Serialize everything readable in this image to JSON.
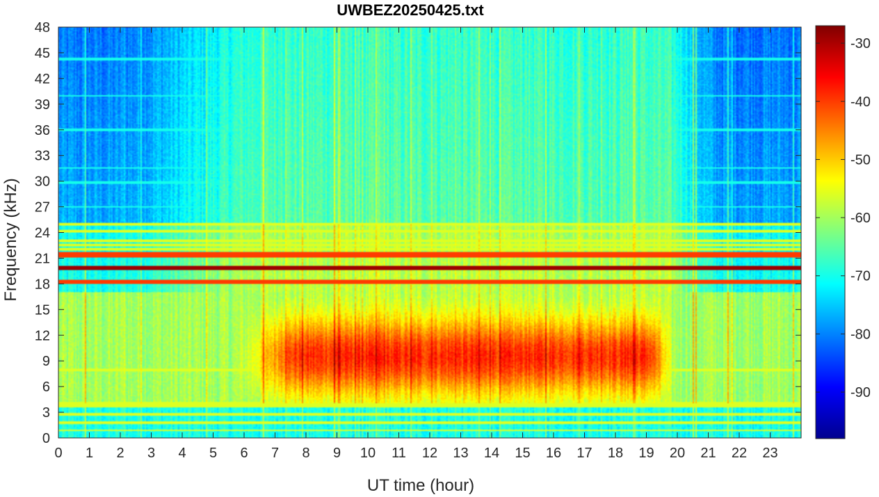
{
  "chart_data": {
    "type": "heatmap",
    "title": "UWBEZ20250425.txt",
    "xlabel": "UT time (hour)",
    "ylabel": "Frequency (kHz)",
    "xlim": [
      0,
      24
    ],
    "ylim": [
      0,
      48
    ],
    "x_ticks": [
      0,
      1,
      2,
      3,
      4,
      5,
      6,
      7,
      8,
      9,
      10,
      11,
      12,
      13,
      14,
      15,
      16,
      17,
      18,
      19,
      20,
      21,
      22,
      23
    ],
    "y_ticks": [
      0,
      3,
      6,
      9,
      12,
      15,
      18,
      21,
      24,
      27,
      30,
      33,
      36,
      39,
      42,
      45,
      48
    ],
    "colorbar": {
      "colormap": "jet",
      "range": [
        -98,
        -27
      ],
      "ticks": [
        -30,
        -40,
        -50,
        -60,
        -70,
        -80,
        -90
      ]
    },
    "features": {
      "strong_lines_khz": [
        19.8,
        21.4,
        18.2
      ],
      "medium_lines_khz": [
        25.0,
        24.2,
        23.0,
        22.5,
        22.0,
        8.0,
        4.1,
        3.7,
        2.7,
        1.8,
        0.9
      ],
      "weak_lines_khz": [
        44.3,
        31.5,
        40.0,
        36.0,
        29.8,
        27.0
      ],
      "daytime_enhancement": {
        "start_hour": 6.5,
        "end_hour": 20.0,
        "freq_range_khz": [
          4,
          17
        ],
        "peak_db": -43
      },
      "night_background_high_freq_db": -88,
      "day_background_high_freq_db": -68
    }
  }
}
